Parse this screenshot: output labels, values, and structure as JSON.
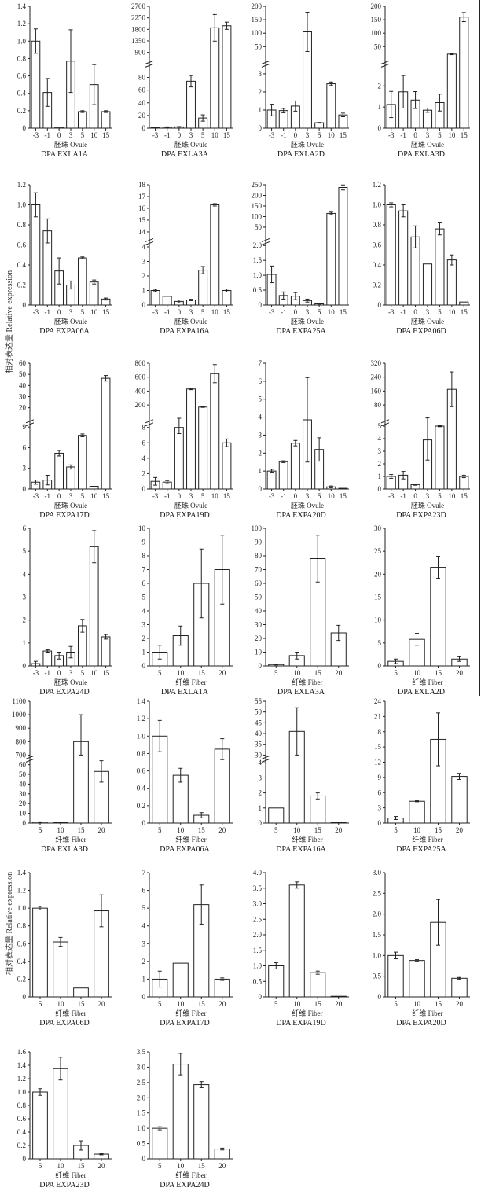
{
  "figure": {
    "ylabel": "相对表达量 Relative expression",
    "line_color": "#222222",
    "bar_fill": "#ffffff"
  },
  "chart_data": [
    {
      "type": "bar",
      "title": "EXLA1A",
      "xlabel": "胚珠 Ovule",
      "prefix": "DPA",
      "categories": [
        "-3",
        "-1",
        "0",
        "3",
        "5",
        "10",
        "15"
      ],
      "values": [
        1.0,
        0.41,
        0.01,
        0.77,
        0.19,
        0.5,
        0.19
      ],
      "errors": [
        0.14,
        0.16,
        0,
        0.36,
        0.01,
        0.23,
        0.01
      ],
      "yticks": [
        "0",
        "0.2",
        "0.4",
        "0.6",
        "0.8",
        "1.0",
        "1.2",
        "1.4"
      ],
      "ylim": [
        0,
        1.4
      ]
    },
    {
      "type": "bar",
      "title": "EXLA3A",
      "xlabel": "胚珠 Ovule",
      "prefix": "DPA",
      "categories": [
        "-3",
        "-1",
        "0",
        "3",
        "5",
        "10",
        "15"
      ],
      "values": [
        1,
        1.5,
        2,
        74,
        16,
        1860,
        1940
      ],
      "errors": [
        0.5,
        0.5,
        0.5,
        9,
        5,
        520,
        140
      ],
      "yticks": [
        "0",
        "20",
        "40",
        "60",
        "80",
        "900",
        "1350",
        "1800",
        "2250",
        "2700"
      ],
      "break": {
        "lo": [
          0,
          100
        ],
        "hi": [
          600,
          2700
        ]
      }
    },
    {
      "type": "bar",
      "title": "EXLA2D",
      "xlabel": "胚珠 Ovule",
      "prefix": "DPA",
      "categories": [
        "-3",
        "-1",
        "0",
        "3",
        "5",
        "10",
        "15"
      ],
      "values": [
        1.0,
        0.97,
        1.22,
        105,
        0.3,
        2.45,
        0.73
      ],
      "errors": [
        0.32,
        0.12,
        0.28,
        73,
        0.02,
        0.1,
        0.1
      ],
      "yticks": [
        "0",
        "1",
        "2",
        "3",
        "50",
        "100",
        "150",
        "200"
      ],
      "break": {
        "lo": [
          0,
          3.5
        ],
        "hi": [
          0,
          200
        ]
      }
    },
    {
      "type": "bar",
      "title": "EXLA3D",
      "xlabel": "胚珠 Ovule",
      "prefix": "DPA",
      "categories": [
        "-3",
        "-1",
        "0",
        "3",
        "5",
        "10",
        "15"
      ],
      "values": [
        1.12,
        1.72,
        1.33,
        0.85,
        1.21,
        22,
        160
      ],
      "errors": [
        0.62,
        0.77,
        0.4,
        0.1,
        0.4,
        2,
        17
      ],
      "yticks": [
        "0",
        "1",
        "2",
        "50",
        "100",
        "150",
        "200"
      ],
      "break": {
        "lo": [
          0,
          3
        ],
        "hi": [
          0,
          200
        ]
      }
    },
    {
      "type": "bar",
      "title": "EXPA06A",
      "xlabel": "胚珠 Ovule",
      "prefix": "DPA",
      "categories": [
        "-3",
        "-1",
        "0",
        "3",
        "5",
        "10",
        "15"
      ],
      "values": [
        1.0,
        0.74,
        0.34,
        0.2,
        0.47,
        0.23,
        0.06
      ],
      "errors": [
        0.12,
        0.12,
        0.13,
        0.04,
        0.01,
        0.02,
        0.01
      ],
      "yticks": [
        "0",
        "0.2",
        "0.4",
        "0.6",
        "0.8",
        "1.0",
        "1.2"
      ],
      "ylim": [
        0,
        1.2
      ]
    },
    {
      "type": "bar",
      "title": "EXPA16A",
      "xlabel": "胚珠 Ovule",
      "prefix": "DPA",
      "categories": [
        "-3",
        "-1",
        "0",
        "3",
        "5",
        "10",
        "15"
      ],
      "values": [
        1.0,
        0.6,
        0.25,
        0.35,
        2.4,
        16.3,
        1.0
      ],
      "errors": [
        0.08,
        0.0,
        0.1,
        0.05,
        0.25,
        0.1,
        0.1
      ],
      "yticks": [
        "0",
        "1",
        "2",
        "3",
        "4",
        "14",
        "15",
        "16",
        "17",
        "18"
      ],
      "break": {
        "lo": [
          0,
          4.3
        ],
        "hi": [
          13.5,
          18
        ]
      }
    },
    {
      "type": "bar",
      "title": "EXPA25A",
      "xlabel": "胚珠 Ovule",
      "prefix": "DPA",
      "categories": [
        "-3",
        "-1",
        "0",
        "3",
        "5",
        "10",
        "15"
      ],
      "values": [
        1.03,
        0.32,
        0.3,
        0.15,
        0.04,
        115,
        237
      ],
      "errors": [
        0.28,
        0.12,
        0.12,
        0.05,
        0.01,
        6,
        12
      ],
      "yticks": [
        "0",
        "0.5",
        "1.0",
        "1.5",
        "2.0",
        "50",
        "100",
        "150",
        "200",
        "250"
      ],
      "break": {
        "lo": [
          0,
          2.1
        ],
        "hi": [
          0,
          250
        ]
      }
    },
    {
      "type": "bar",
      "title": "EXPA06D",
      "xlabel": "胚珠 Ovule",
      "prefix": "DPA",
      "categories": [
        "-3",
        "-1",
        "0",
        "3",
        "5",
        "10",
        "15"
      ],
      "values": [
        1.0,
        0.94,
        0.68,
        0.41,
        0.76,
        0.45,
        0.03
      ],
      "errors": [
        0.02,
        0.06,
        0.11,
        0.0,
        0.06,
        0.05,
        0.0
      ],
      "yticks": [
        "0",
        "0.2",
        "0.4",
        "0.6",
        "0.8",
        "1.0",
        "1.2"
      ],
      "ylim": [
        0,
        1.2
      ]
    },
    {
      "type": "bar",
      "title": "EXPA17D",
      "xlabel": "胚珠 Ovule",
      "prefix": "DPA",
      "categories": [
        "-3",
        "-1",
        "0",
        "3",
        "5",
        "10",
        "15"
      ],
      "values": [
        1.0,
        1.3,
        5.2,
        3.2,
        7.8,
        0.4,
        46.5
      ],
      "errors": [
        0.3,
        0.7,
        0.4,
        0.3,
        0.2,
        0.0,
        2.5
      ],
      "yticks": [
        "0",
        "3",
        "6",
        "9",
        "20",
        "30",
        "40",
        "50",
        "60"
      ],
      "break": {
        "lo": [
          0,
          9.5
        ],
        "hi": [
          10,
          60
        ]
      }
    },
    {
      "type": "bar",
      "title": "EXPA19D",
      "xlabel": "胚珠 Ovule",
      "prefix": "DPA",
      "categories": [
        "-3",
        "-1",
        "0",
        "3",
        "5",
        "10",
        "15"
      ],
      "values": [
        1.0,
        0.9,
        8.0,
        430,
        170,
        650,
        6.0
      ],
      "errors": [
        0.5,
        0.2,
        0.8,
        10,
        5,
        130,
        0.5
      ],
      "yticks": [
        "0",
        "2",
        "4",
        "6",
        "8",
        "200",
        "400",
        "600",
        "800"
      ],
      "break": {
        "lo": [
          0,
          8.5
        ],
        "hi": [
          0,
          800
        ]
      }
    },
    {
      "type": "bar",
      "title": "EXPA20D",
      "xlabel": "胚珠 Ovule",
      "prefix": "DPA",
      "categories": [
        "-3",
        "-1",
        "0",
        "3",
        "5",
        "10",
        "15"
      ],
      "values": [
        1.0,
        1.52,
        2.55,
        3.85,
        2.2,
        0.12,
        0.04
      ],
      "errors": [
        0.1,
        0.05,
        0.15,
        2.35,
        0.65,
        0.05,
        0.0
      ],
      "yticks": [
        "0",
        "1",
        "2",
        "3",
        "4",
        "5",
        "6",
        "7"
      ],
      "ylim": [
        0,
        7
      ]
    },
    {
      "type": "bar",
      "title": "EXPA23D",
      "xlabel": "胚珠 Ovule",
      "prefix": "DPA",
      "categories": [
        "-3",
        "-1",
        "0",
        "3",
        "5",
        "10",
        "15"
      ],
      "values": [
        1.0,
        1.1,
        0.35,
        3.9,
        5.0,
        170,
        1.0
      ],
      "errors": [
        0.15,
        0.3,
        0.05,
        1.6,
        0.05,
        100,
        0.1
      ],
      "yticks": [
        "0",
        "1",
        "2",
        "3",
        "4",
        "5",
        "80",
        "160",
        "240",
        "320"
      ],
      "break": {
        "lo": [
          0,
          5.2
        ],
        "hi": [
          0,
          320
        ]
      }
    },
    {
      "type": "bar",
      "title": "EXPA24D",
      "xlabel": "胚珠 Ovule",
      "prefix": "DPA",
      "categories": [
        "-3",
        "-1",
        "0",
        "3",
        "5",
        "10",
        "15"
      ],
      "values": [
        0.1,
        0.65,
        0.45,
        0.6,
        1.75,
        5.2,
        1.27
      ],
      "errors": [
        0.1,
        0.05,
        0.15,
        0.25,
        0.28,
        0.7,
        0.1
      ],
      "yticks": [
        "0",
        "1",
        "2",
        "3",
        "4",
        "5",
        "6"
      ],
      "ylim": [
        0,
        6
      ]
    },
    {
      "type": "bar",
      "title": "EXLA1A",
      "xlabel": "纤维 Fiber",
      "prefix": "DPA",
      "categories": [
        "5",
        "10",
        "15",
        "20"
      ],
      "values": [
        1.0,
        2.2,
        6.0,
        7.0
      ],
      "errors": [
        0.5,
        0.7,
        2.5,
        2.5
      ],
      "yticks": [
        "0",
        "1",
        "2",
        "3",
        "4",
        "5",
        "6",
        "7",
        "8",
        "9",
        "10"
      ],
      "ylim": [
        0,
        10
      ]
    },
    {
      "type": "bar",
      "title": "EXLA3A",
      "xlabel": "纤维 Fiber",
      "prefix": "DPA",
      "categories": [
        "5",
        "10",
        "15",
        "20"
      ],
      "values": [
        1.0,
        7.5,
        78,
        24
      ],
      "errors": [
        0.3,
        2.5,
        17,
        5.5
      ],
      "yticks": [
        "0",
        "10",
        "20",
        "30",
        "40",
        "50",
        "60",
        "70",
        "80",
        "90",
        "100"
      ],
      "ylim": [
        0,
        100
      ]
    },
    {
      "type": "bar",
      "title": "EXLA2D",
      "xlabel": "纤维 Fiber",
      "prefix": "DPA",
      "categories": [
        "5",
        "10",
        "15",
        "20"
      ],
      "values": [
        1.0,
        5.8,
        21.5,
        1.5
      ],
      "errors": [
        0.5,
        1.3,
        2.4,
        0.5
      ],
      "yticks": [
        "0",
        "5",
        "10",
        "15",
        "20",
        "25",
        "30"
      ],
      "ylim": [
        0,
        30
      ]
    },
    {
      "type": "bar",
      "title": "EXLA3D",
      "xlabel": "纤维 Fiber",
      "prefix": "DPA",
      "categories": [
        "5",
        "10",
        "15",
        "20"
      ],
      "values": [
        1.0,
        0.8,
        800,
        53
      ],
      "errors": [
        0.3,
        0.2,
        200,
        11
      ],
      "yticks": [
        "0",
        "10",
        "20",
        "30",
        "40",
        "50",
        "60",
        "700",
        "800",
        "900",
        "1000",
        "1100"
      ],
      "break": {
        "lo": [
          0,
          65
        ],
        "hi": [
          700,
          1100
        ]
      }
    },
    {
      "type": "bar",
      "title": "EXPA06A",
      "xlabel": "纤维 Fiber",
      "prefix": "DPA",
      "categories": [
        "5",
        "10",
        "15",
        "20"
      ],
      "values": [
        1.0,
        0.55,
        0.09,
        0.85
      ],
      "errors": [
        0.18,
        0.08,
        0.03,
        0.12
      ],
      "yticks": [
        "0",
        "0.2",
        "0.4",
        "0.6",
        "0.8",
        "1.0",
        "1.2",
        "1.4"
      ],
      "ylim": [
        0,
        1.4
      ]
    },
    {
      "type": "bar",
      "title": "EXPA16A",
      "xlabel": "纤维 Fiber",
      "prefix": "DPA",
      "categories": [
        "5",
        "10",
        "15",
        "20"
      ],
      "values": [
        1.0,
        41,
        1.8,
        0.0
      ],
      "errors": [
        0.0,
        11,
        0.2,
        0.0
      ],
      "yticks": [
        "0",
        "1",
        "2",
        "3",
        "4",
        "30",
        "35",
        "40",
        "45",
        "50",
        "55"
      ],
      "break": {
        "lo": [
          0,
          4.2
        ],
        "hi": [
          30,
          55
        ]
      }
    },
    {
      "type": "bar",
      "title": "EXPA25A",
      "xlabel": "纤维 Fiber",
      "prefix": "DPA",
      "categories": [
        "5",
        "10",
        "15",
        "20"
      ],
      "values": [
        1.0,
        4.3,
        16.5,
        9.2
      ],
      "errors": [
        0.3,
        0.1,
        5.2,
        0.6
      ],
      "yticks": [
        "0",
        "3",
        "6",
        "9",
        "12",
        "15",
        "18",
        "21",
        "24"
      ],
      "ylim": [
        0,
        24
      ]
    },
    {
      "type": "bar",
      "title": "EXPA06D",
      "xlabel": "纤维 Fiber",
      "prefix": "DPA",
      "categories": [
        "5",
        "10",
        "15",
        "20"
      ],
      "values": [
        1.0,
        0.62,
        0.1,
        0.97
      ],
      "errors": [
        0.02,
        0.05,
        0.0,
        0.18
      ],
      "yticks": [
        "0",
        "0.2",
        "0.4",
        "0.6",
        "0.8",
        "1.0",
        "1.2",
        "1.4"
      ],
      "ylim": [
        0,
        1.4
      ]
    },
    {
      "type": "bar",
      "title": "EXPA17D",
      "xlabel": "纤维 Fiber",
      "prefix": "DPA",
      "categories": [
        "5",
        "10",
        "15",
        "20"
      ],
      "values": [
        1.0,
        1.9,
        5.2,
        1.0
      ],
      "errors": [
        0.45,
        0.0,
        1.1,
        0.07
      ],
      "yticks": [
        "0",
        "1",
        "2",
        "3",
        "4",
        "5",
        "6",
        "7"
      ],
      "ylim": [
        0,
        7
      ]
    },
    {
      "type": "bar",
      "title": "EXPA19D",
      "xlabel": "纤维 Fiber",
      "prefix": "DPA",
      "categories": [
        "5",
        "10",
        "15",
        "20"
      ],
      "values": [
        1.0,
        3.6,
        0.78,
        0.0
      ],
      "errors": [
        0.1,
        0.1,
        0.05,
        0.0
      ],
      "yticks": [
        "0",
        "0.5",
        "1.0",
        "1.5",
        "2.0",
        "2.5",
        "3.0",
        "3.5",
        "4.0"
      ],
      "ylim": [
        0,
        4
      ]
    },
    {
      "type": "bar",
      "title": "EXPA20D",
      "xlabel": "纤维 Fiber",
      "prefix": "DPA",
      "categories": [
        "5",
        "10",
        "15",
        "20"
      ],
      "values": [
        1.0,
        0.88,
        1.8,
        0.45
      ],
      "errors": [
        0.08,
        0.02,
        0.55,
        0.02
      ],
      "yticks": [
        "0",
        "0.5",
        "1.0",
        "1.5",
        "2.0",
        "2.5",
        "3.0"
      ],
      "ylim": [
        0,
        3
      ]
    },
    {
      "type": "bar",
      "title": "EXPA23D",
      "xlabel": "纤维 Fiber",
      "prefix": "DPA",
      "categories": [
        "5",
        "10",
        "15",
        "20"
      ],
      "values": [
        1.0,
        1.35,
        0.2,
        0.07
      ],
      "errors": [
        0.05,
        0.17,
        0.07,
        0.01
      ],
      "yticks": [
        "0",
        "0.2",
        "0.4",
        "0.6",
        "0.8",
        "1.0",
        "1.2",
        "1.4",
        "1.6"
      ],
      "ylim": [
        0,
        1.6
      ]
    },
    {
      "type": "bar",
      "title": "EXPA24D",
      "xlabel": "纤维 Fiber",
      "prefix": "DPA",
      "categories": [
        "5",
        "10",
        "15",
        "20"
      ],
      "values": [
        1.0,
        3.1,
        2.43,
        0.32
      ],
      "errors": [
        0.05,
        0.35,
        0.1,
        0.03
      ],
      "yticks": [
        "0",
        "0.5",
        "1.0",
        "1.5",
        "2.0",
        "2.5",
        "3.0",
        "3.5"
      ],
      "ylim": [
        0,
        3.5
      ]
    }
  ]
}
